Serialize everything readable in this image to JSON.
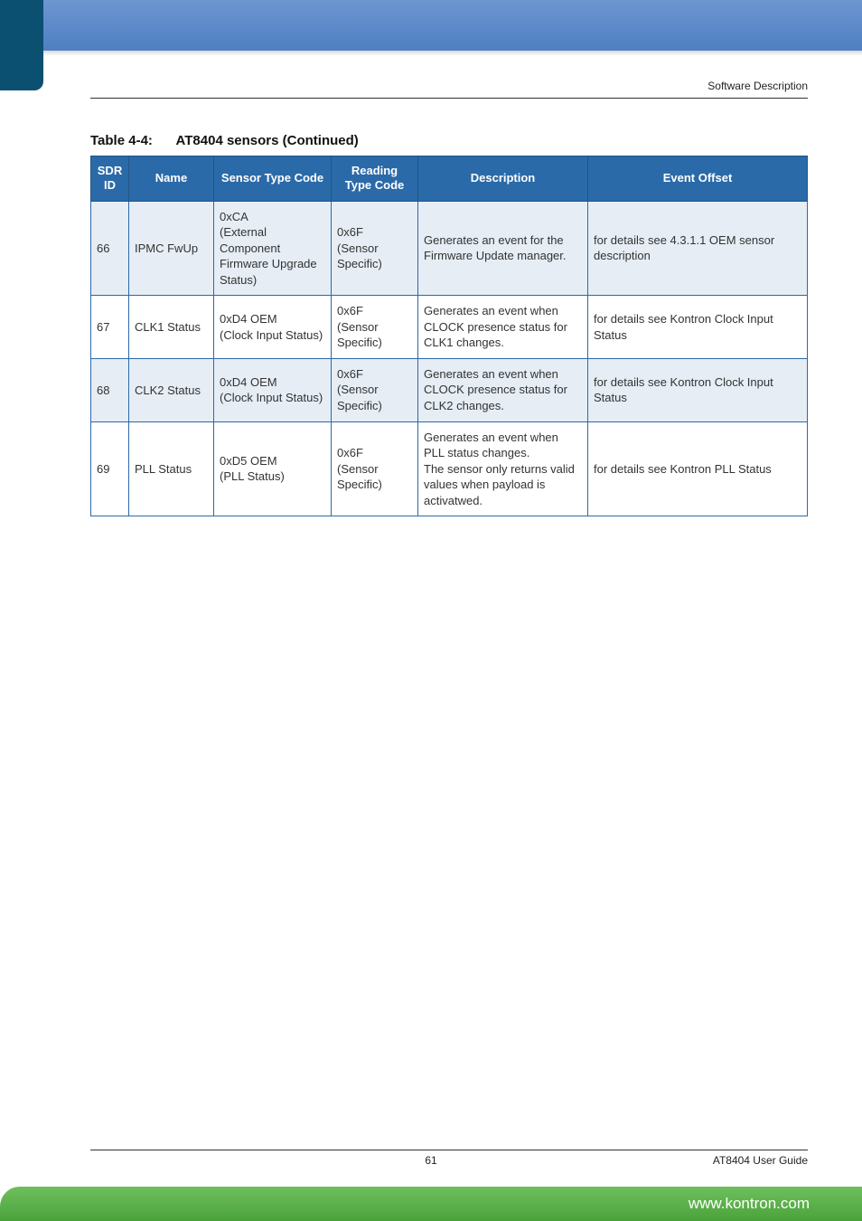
{
  "header": {
    "section_label": "Software Description"
  },
  "caption": {
    "prefix": "Table 4-4:",
    "title": "AT8404 sensors (Continued)"
  },
  "table": {
    "header_bg": "#2b6aa8",
    "header_fg": "#ffffff",
    "border_color": "#2b6aa8",
    "alt_row_bg": "#e6edf5",
    "columns": [
      {
        "key": "sdr_id",
        "label": "SDR ID"
      },
      {
        "key": "name",
        "label": "Name"
      },
      {
        "key": "sensor_type_code",
        "label": "Sensor Type Code"
      },
      {
        "key": "reading_type_code",
        "label": "Reading Type Code"
      },
      {
        "key": "description",
        "label": "Description"
      },
      {
        "key": "event_offset",
        "label": "Event Offset"
      }
    ],
    "rows": [
      {
        "alt": true,
        "sdr_id": "66",
        "name": "IPMC FwUp",
        "sensor_type_code": "0xCA\n(External Component Firmware Upgrade Status)",
        "reading_type_code": "0x6F\n(Sensor Specific)",
        "description": "Generates an event for the Firmware Update manager.",
        "event_offset": "for details see 4.3.1.1 OEM sensor description"
      },
      {
        "alt": false,
        "sdr_id": "67",
        "name": "CLK1 Status",
        "sensor_type_code": "0xD4 OEM\n(Clock Input Status)",
        "reading_type_code": "0x6F\n(Sensor Specific)",
        "description": "Generates an event when CLOCK presence status for CLK1 changes.",
        "event_offset": "for details see Kontron Clock Input Status"
      },
      {
        "alt": true,
        "sdr_id": "68",
        "name": "CLK2 Status",
        "sensor_type_code": "0xD4 OEM\n(Clock Input Status)",
        "reading_type_code": "0x6F\n(Sensor Specific)",
        "description": "Generates an event when CLOCK presence status for CLK2 changes.",
        "event_offset": "for details see Kontron Clock Input Status"
      },
      {
        "alt": false,
        "sdr_id": "69",
        "name": "PLL Status",
        "sensor_type_code": "0xD5 OEM\n(PLL Status)",
        "reading_type_code": "0x6F\n(Sensor Specific)",
        "description": "Generates an event when PLL status changes.\nThe sensor only returns valid values when payload is activatwed.",
        "event_offset": "for details see Kontron PLL Status"
      }
    ]
  },
  "footer": {
    "page_number": "61",
    "doc_title": "AT8404 User  Guide",
    "url": "www.kontron.com"
  },
  "colors": {
    "top_banner_start": "#6d96d1",
    "top_banner_end": "#4f7fc2",
    "top_left_block": "#0b4f71",
    "bottom_banner_start": "#6fbf5e",
    "bottom_banner_end": "#4aa33a",
    "text": "#333333",
    "rule": "#333333"
  }
}
